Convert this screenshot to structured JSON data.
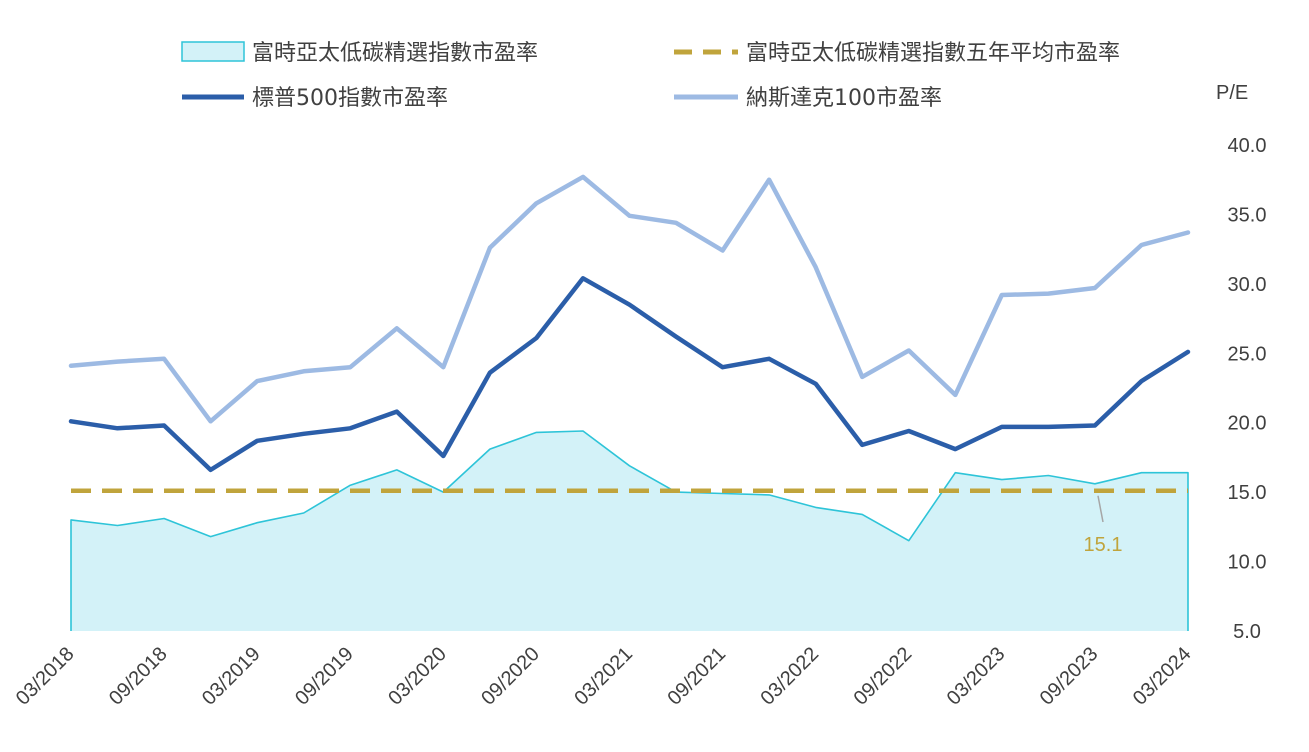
{
  "chart_data": {
    "type": "line",
    "title": "",
    "y_unit_label": "P/E",
    "ylim": [
      5.0,
      40.0
    ],
    "y_ticks": [
      "5.0",
      "10.0",
      "15.0",
      "20.0",
      "25.0",
      "30.0",
      "35.0",
      "40.0"
    ],
    "x_tick_labels": [
      "03/2018",
      "09/2018",
      "03/2019",
      "09/2019",
      "03/2020",
      "09/2020",
      "03/2021",
      "09/2021",
      "03/2022",
      "09/2022",
      "03/2023",
      "09/2023",
      "03/2024"
    ],
    "n_points": 25,
    "series": [
      {
        "name": "富時亞太低碳精選指數市盈率",
        "style": "area",
        "color": "#2ec4d8",
        "fill": "#d3f2f8",
        "values": [
          13.0,
          12.6,
          13.1,
          11.8,
          12.8,
          13.5,
          15.5,
          16.6,
          15.0,
          18.1,
          19.3,
          19.4,
          16.9,
          15.0,
          14.9,
          14.8,
          13.9,
          13.4,
          11.5,
          16.4,
          15.9,
          16.2,
          15.6,
          16.4,
          16.4
        ]
      },
      {
        "name": "富時亞太低碳精選指數五年平均市盈率",
        "style": "dashed",
        "color": "#c0a43c",
        "values": [
          15.1,
          15.1,
          15.1,
          15.1,
          15.1,
          15.1,
          15.1,
          15.1,
          15.1,
          15.1,
          15.1,
          15.1,
          15.1,
          15.1,
          15.1,
          15.1,
          15.1,
          15.1,
          15.1,
          15.1,
          15.1,
          15.1,
          15.1,
          15.1,
          15.1
        ]
      },
      {
        "name": "標普500指數市盈率",
        "style": "line",
        "color": "#2b5ea9",
        "values": [
          20.1,
          19.6,
          19.8,
          16.6,
          18.7,
          19.2,
          19.6,
          20.8,
          17.6,
          23.6,
          26.1,
          30.4,
          28.5,
          26.2,
          24.0,
          24.6,
          22.8,
          18.4,
          19.4,
          18.1,
          19.7,
          19.7,
          19.8,
          23.0,
          25.1
        ]
      },
      {
        "name": "納斯達克100市盈率",
        "style": "line",
        "color": "#9dbae3",
        "values": [
          24.1,
          24.4,
          24.6,
          20.1,
          23.0,
          23.7,
          24.0,
          26.8,
          24.0,
          32.6,
          35.8,
          37.7,
          34.9,
          34.4,
          32.4,
          37.5,
          31.2,
          23.3,
          25.2,
          22.0,
          29.2,
          29.3,
          29.7,
          32.8,
          33.7
        ]
      }
    ],
    "annotations": [
      {
        "text": "15.1",
        "series": "富時亞太低碳精選指數五年平均市盈率"
      }
    ]
  }
}
